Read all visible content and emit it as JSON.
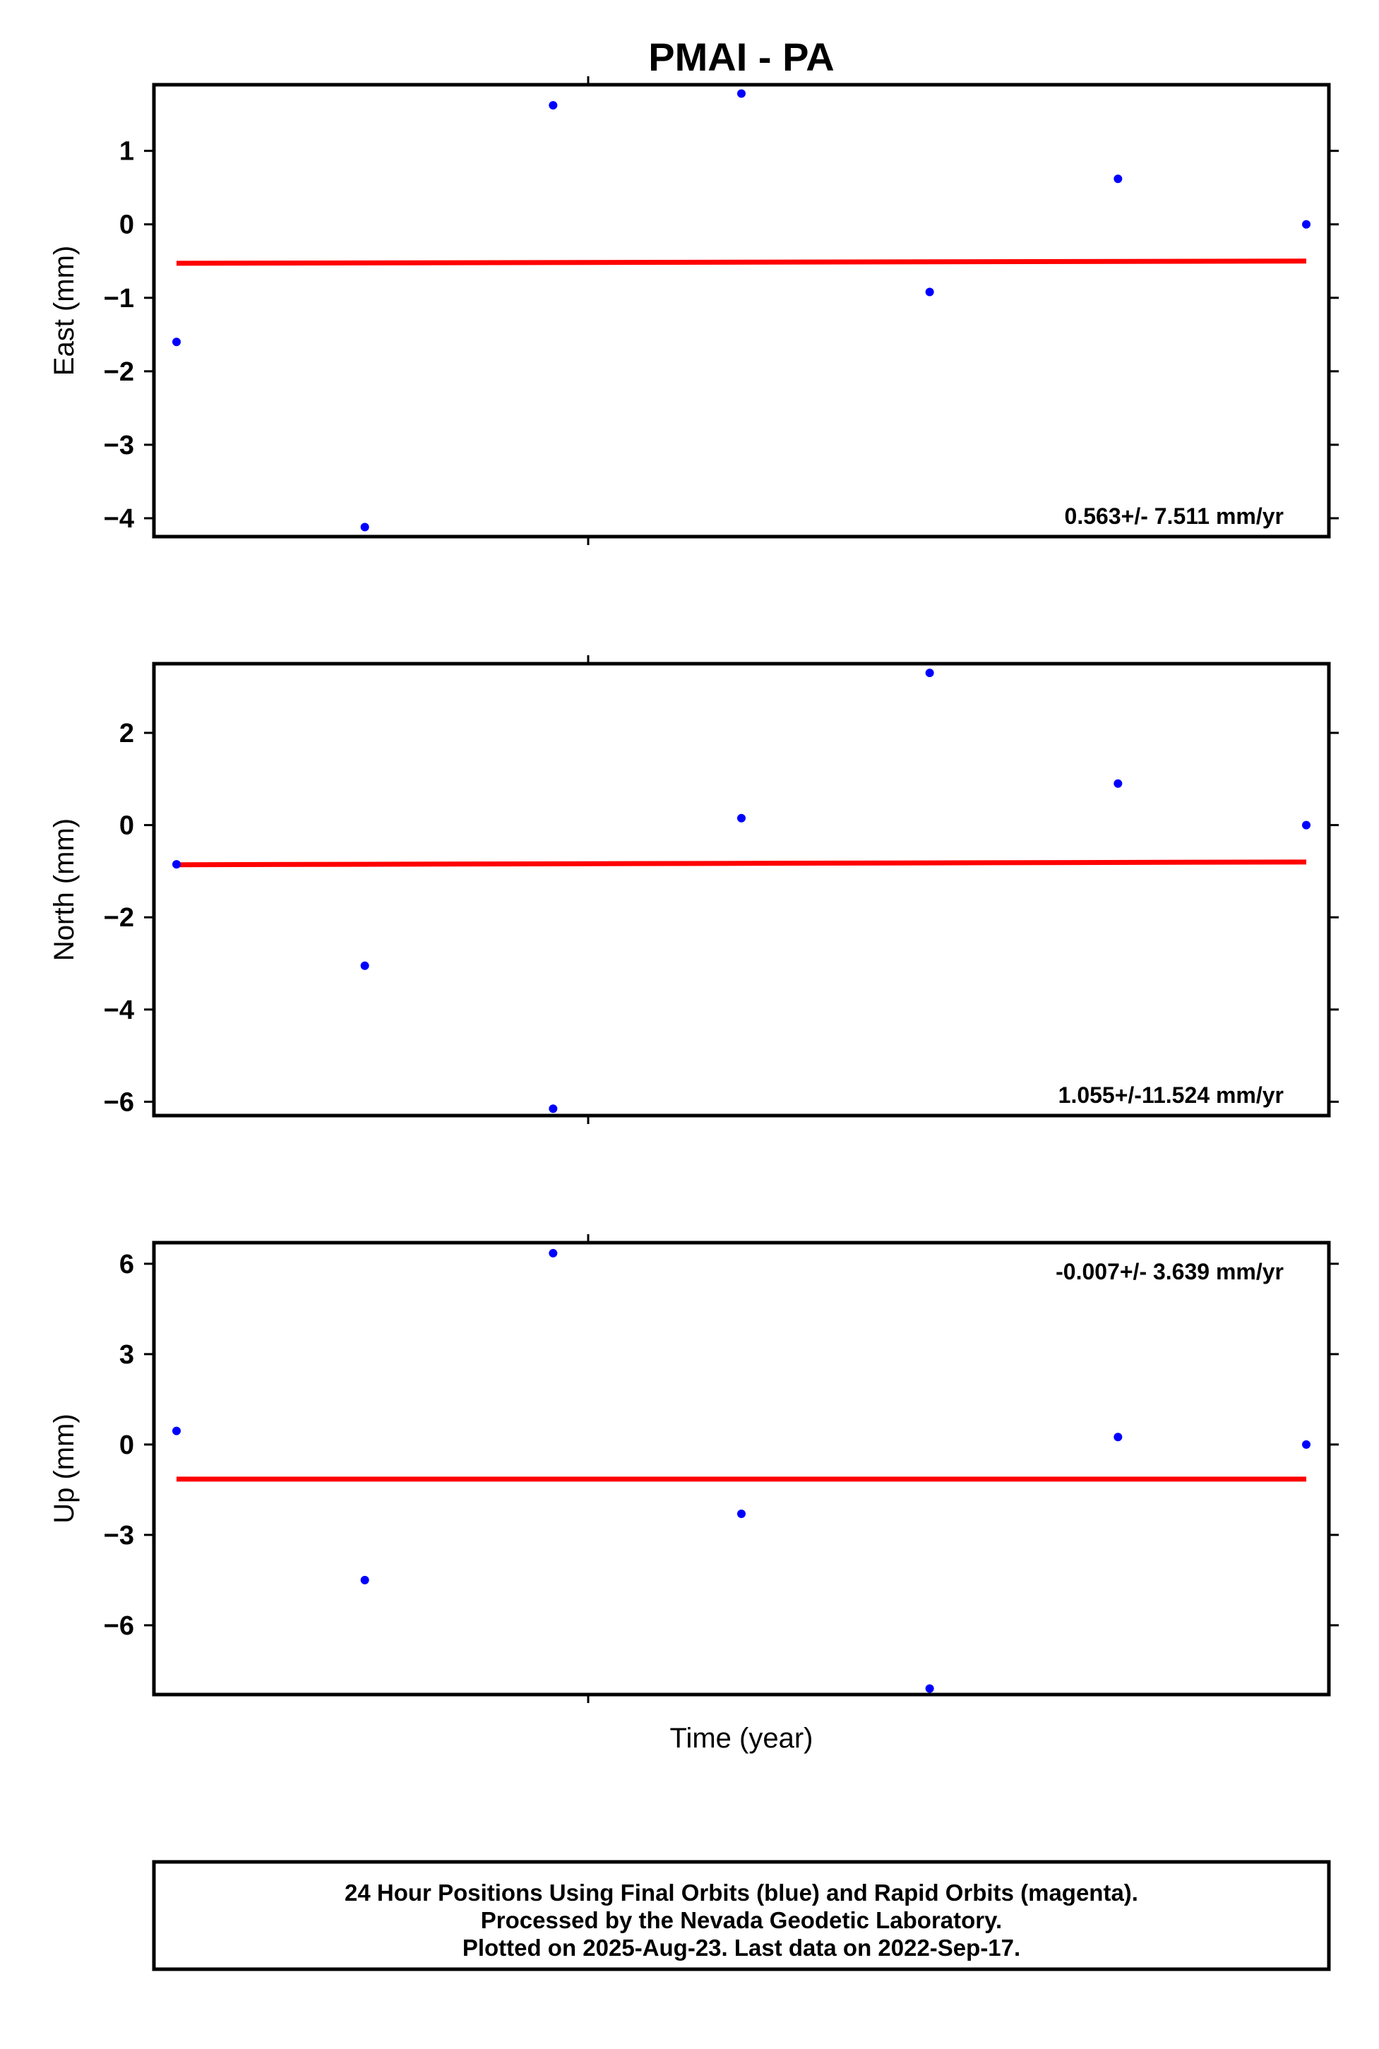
{
  "title": "PMAI - PA",
  "xlabel": "Time (year)",
  "footer": {
    "lines": [
      "24 Hour Positions Using Final Orbits (blue) and Rapid Orbits (magenta).",
      "Processed by the Nevada Geodetic Laboratory.",
      "Plotted on 2025-Aug-23. Last data on 2022-Sep-17."
    ]
  },
  "colors": {
    "points": "#0000ff",
    "trend": "#ff0000",
    "frame": "#000000"
  },
  "chart_data": [
    {
      "type": "scatter",
      "ylabel": "East (mm)",
      "ylim": [
        -4.25,
        1.9
      ],
      "yticks": [
        1,
        0,
        -1,
        -2,
        -3,
        -4
      ],
      "ytick_labels": [
        "1",
        "0",
        "−1",
        "−2",
        "−3",
        "−4"
      ],
      "rate_label": "0.563+/- 7.511 mm/yr",
      "rate_position": "bottom-right",
      "x": [
        1,
        2,
        3,
        4,
        5,
        6,
        7
      ],
      "y": [
        -1.6,
        -4.12,
        1.62,
        1.78,
        -0.92,
        0.62,
        0.0
      ],
      "trend": [
        -0.53,
        -0.5
      ]
    },
    {
      "type": "scatter",
      "ylabel": "North (mm)",
      "ylim": [
        -6.3,
        3.5
      ],
      "yticks": [
        2,
        0,
        -2,
        -4,
        -6
      ],
      "ytick_labels": [
        "2",
        "0",
        "−2",
        "−4",
        "−6"
      ],
      "rate_label": "1.055+/-11.524 mm/yr",
      "rate_position": "bottom-right",
      "x": [
        1,
        2,
        3,
        4,
        5,
        6,
        7
      ],
      "y": [
        -0.85,
        -3.05,
        -6.15,
        0.15,
        3.3,
        0.9,
        0.0
      ],
      "trend": [
        -0.86,
        -0.8
      ]
    },
    {
      "type": "scatter",
      "ylabel": "Up (mm)",
      "ylim": [
        -8.3,
        6.7
      ],
      "yticks": [
        6,
        3,
        0,
        -3,
        -6
      ],
      "ytick_labels": [
        "6",
        "3",
        "0",
        "−3",
        "−6"
      ],
      "rate_label": "-0.007+/- 3.639 mm/yr",
      "rate_position": "top-right",
      "x": [
        1,
        2,
        3,
        4,
        5,
        6,
        7
      ],
      "y": [
        0.45,
        -4.5,
        6.35,
        -2.3,
        -8.1,
        0.25,
        0.0
      ],
      "trend": [
        -1.15,
        -1.15
      ]
    }
  ]
}
